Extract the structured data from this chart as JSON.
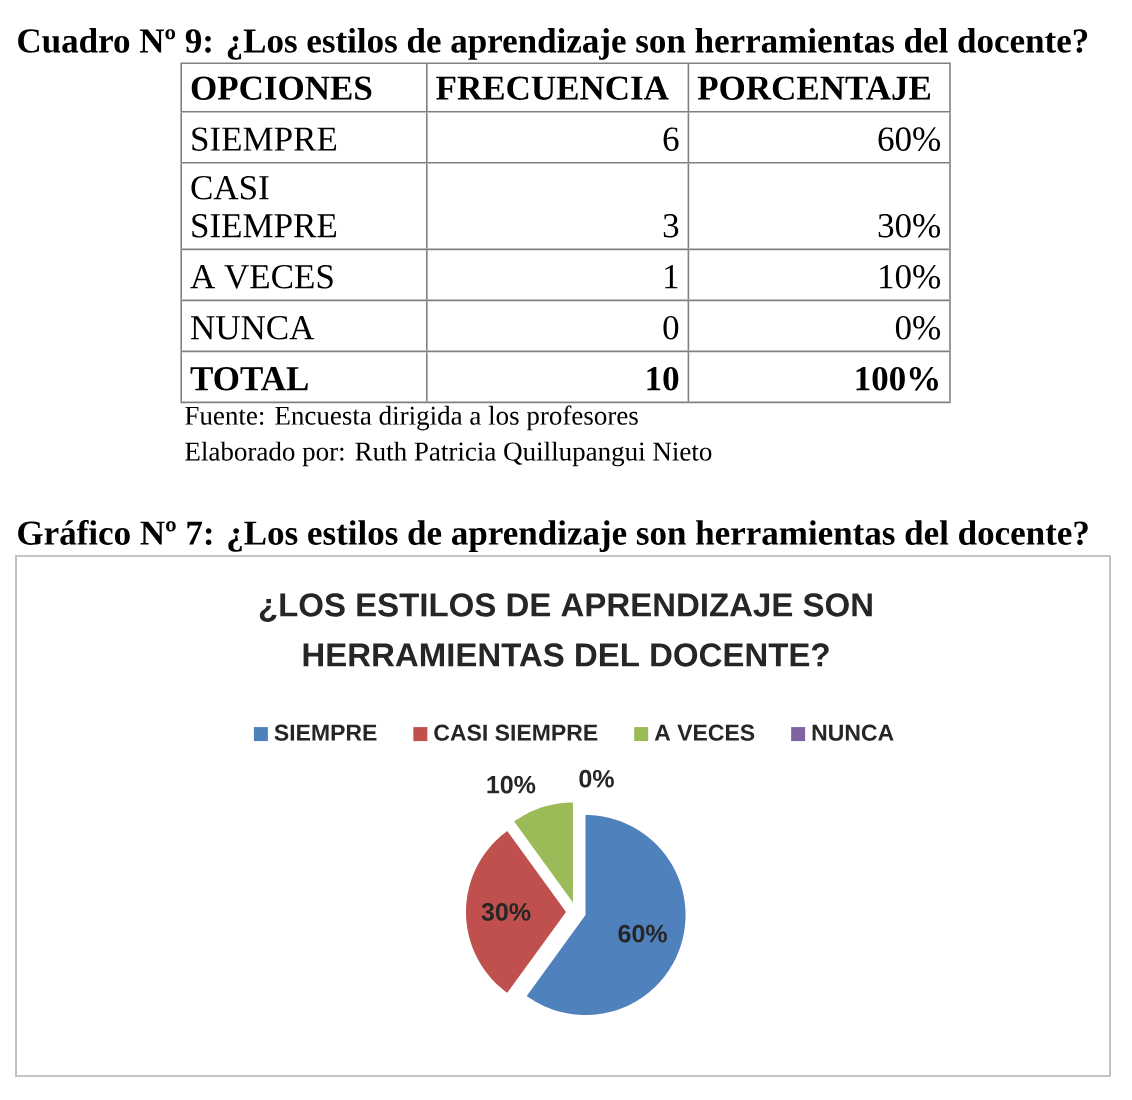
{
  "chart_data": [
    {
      "type": "other",
      "title": "Cuadro Nº 9: ¿Los estilos de aprendizaje son herramientas del docente?",
      "xlabel": "OPCIONES",
      "categories": [
        "SIEMPRE",
        "CASI SIEMPRE",
        "A VECES",
        "NUNCA",
        "TOTAL"
      ],
      "data_labels": true,
      "series": [
        {
          "name": "FRECUENCIA",
          "values": [
            6,
            3,
            1,
            0,
            10
          ]
        },
        {
          "name": "PORCENTAJE",
          "values": [
            60,
            30,
            10,
            0,
            100
          ],
          "value_labels": [
            "60%",
            "30%",
            "10%",
            "0%",
            "100%"
          ]
        }
      ],
      "annotations": [
        "Fuente: Encuesta dirigida a los profesores",
        "Elaborado por: Ruth Patricia Quillupangui Nieto"
      ]
    },
    {
      "type": "pie",
      "title": "Gráfico Nº 7: ¿Los estilos de aprendizaje son herramientas del docente?",
      "subtitle": "¿LOS ESTILOS DE APRENDIZAJE SON HERRAMIENTAS DEL DOCENTE?",
      "categories": [
        "SIEMPRE",
        "CASI SIEMPRE",
        "A VECES",
        "NUNCA"
      ],
      "values": [
        60,
        30,
        10,
        0
      ],
      "colors": [
        "#4f81bd",
        "#c0504d",
        "#9bbb59",
        "#8064a2"
      ],
      "value_labels": [
        "60%",
        "30%",
        "10%",
        "0%"
      ],
      "legend": "top"
    }
  ]
}
